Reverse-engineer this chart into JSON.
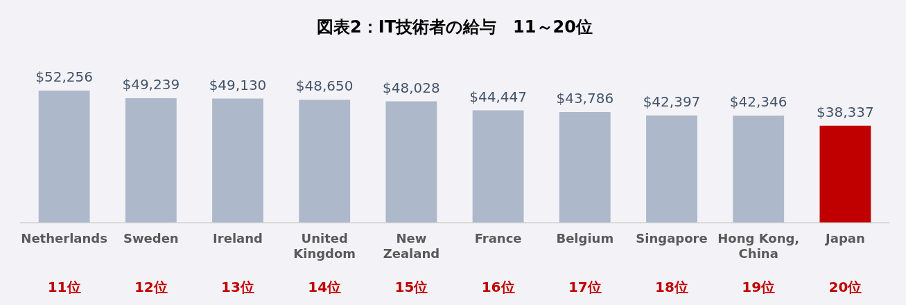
{
  "chart_data": {
    "type": "bar",
    "title": "図表2：IT技術者の給与　11～20位",
    "categories": [
      "Netherlands",
      "Sweden",
      "Ireland",
      "United\nKingdom",
      "New\nZealand",
      "France",
      "Belgium",
      "Singapore",
      "Hong Kong,\nChina",
      "Japan"
    ],
    "values": [
      52256,
      49239,
      49130,
      48650,
      48028,
      44447,
      43786,
      42397,
      42346,
      38337
    ],
    "colors": [
      "#adb9ca",
      "#adb9ca",
      "#adb9ca",
      "#adb9ca",
      "#adb9ca",
      "#adb9ca",
      "#adb9ca",
      "#adb9ca",
      "#adb9ca",
      "#c00000"
    ],
    "value_labels": [
      "$52,256",
      "$49,239",
      "$49,130",
      "$48,650",
      "$48,028",
      "$44,447",
      "$43,786",
      "$42,397",
      "$42,346",
      "$38,337"
    ],
    "annotations": [
      "11位",
      "12位",
      "13位",
      "14位",
      "15位",
      "16位",
      "17位",
      "18位",
      "19位",
      "20位"
    ],
    "grid": false,
    "legend": false
  }
}
